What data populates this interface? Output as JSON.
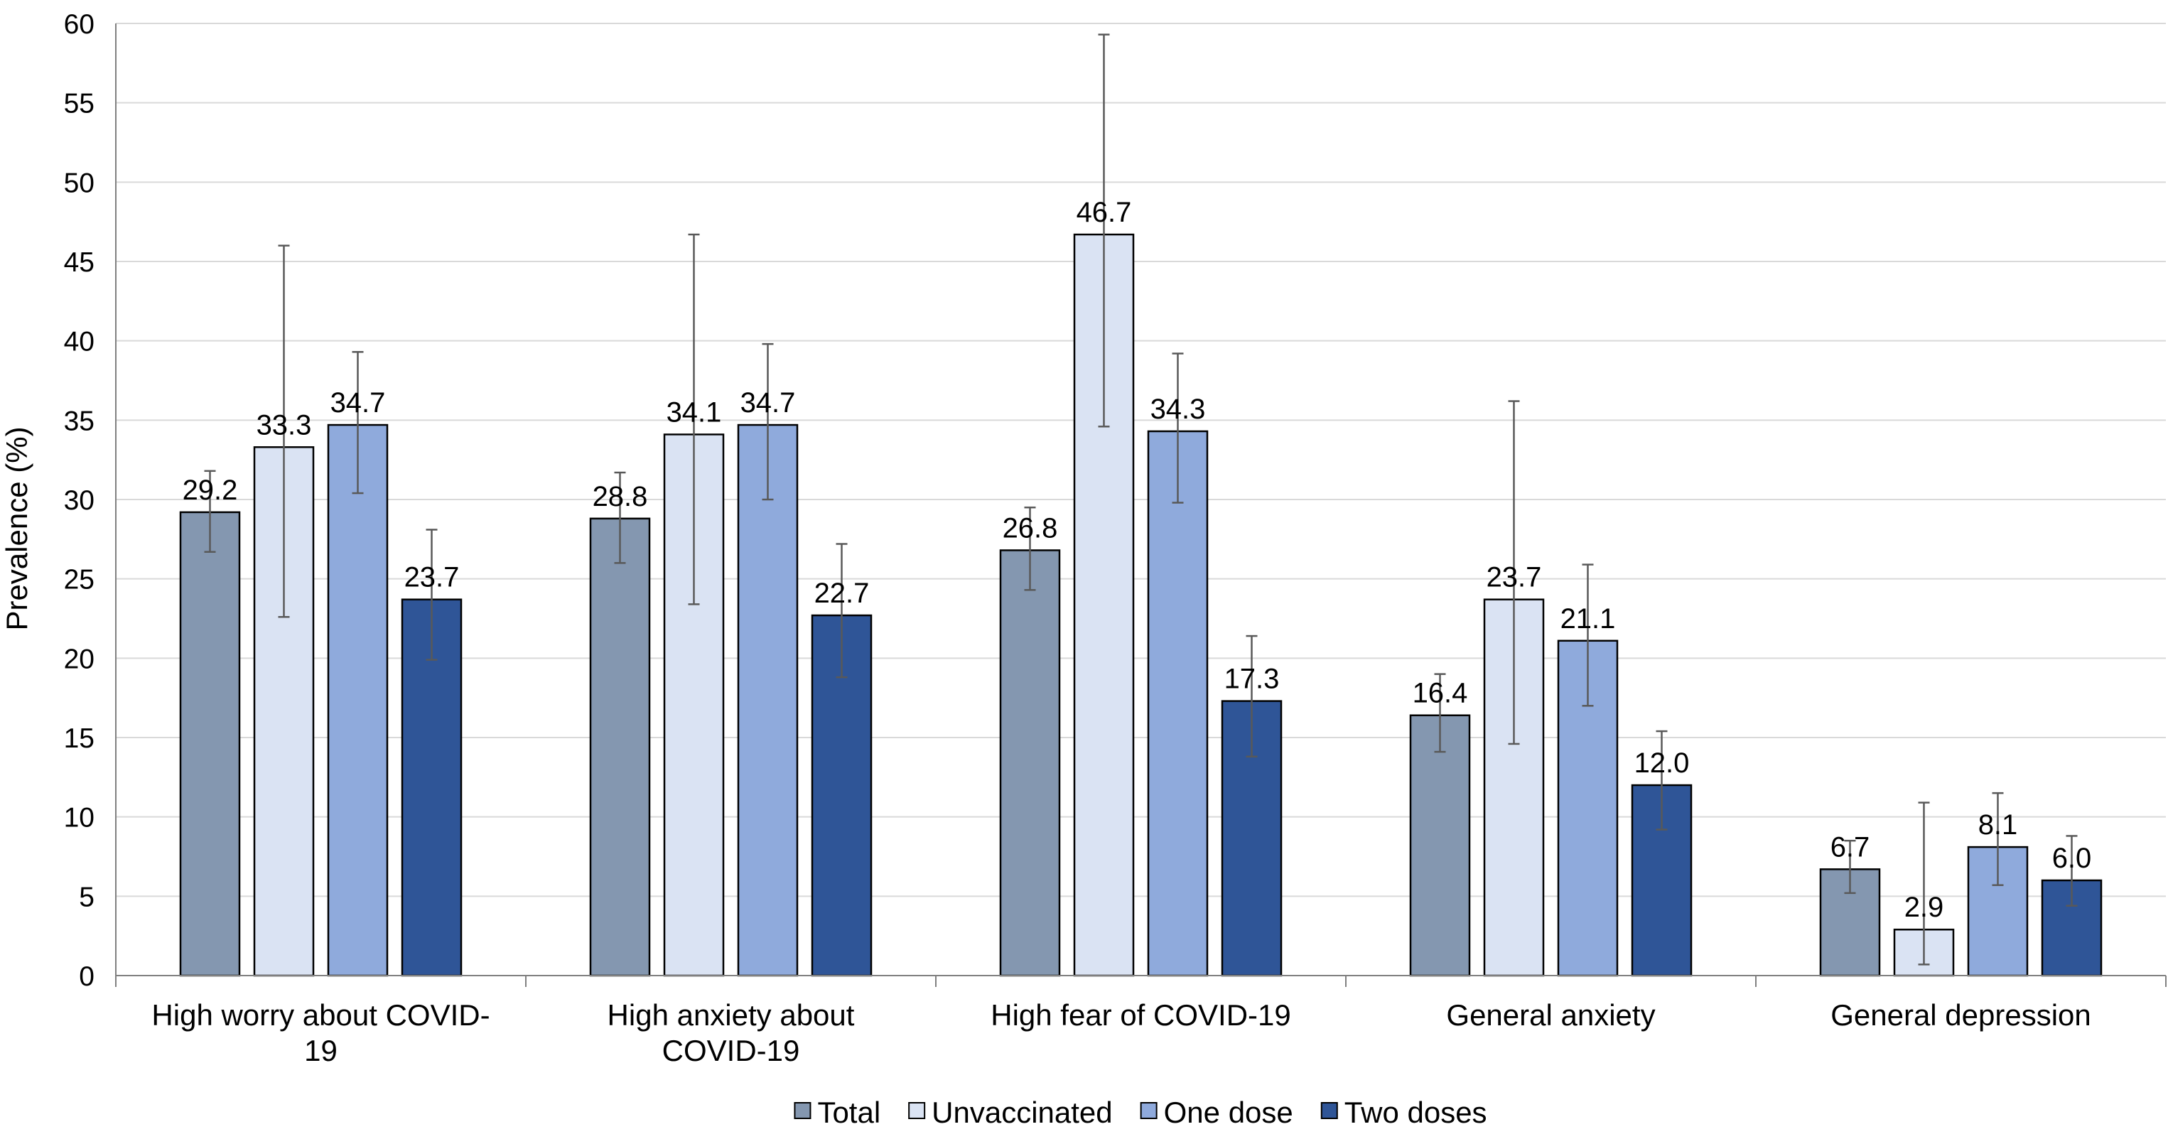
{
  "chart_data": {
    "type": "bar",
    "title": "",
    "xlabel": "",
    "ylabel": "Prevalence (%)",
    "ylim": [
      0,
      60
    ],
    "ytick_step": 5,
    "grid": true,
    "legend_position": "bottom",
    "categories": [
      [
        "High worry about COVID-",
        "19"
      ],
      [
        "High anxiety about",
        "COVID-19"
      ],
      [
        "High fear of COVID-19"
      ],
      [
        "General anxiety"
      ],
      [
        "General depression"
      ]
    ],
    "series": [
      {
        "name": "Total",
        "color": "#8497B0",
        "values": [
          29.2,
          28.8,
          26.8,
          16.4,
          6.7
        ],
        "labels": [
          "29.2",
          "28.8",
          "26.8",
          "16.4",
          "6.7"
        ],
        "ci_low": [
          26.7,
          26.0,
          24.3,
          14.1,
          5.2
        ],
        "ci_high": [
          31.8,
          31.7,
          29.5,
          19.0,
          8.5
        ]
      },
      {
        "name": "Unvaccinated",
        "color": "#DAE3F3",
        "values": [
          33.3,
          34.1,
          46.7,
          23.7,
          2.9
        ],
        "labels": [
          "33.3",
          "34.1",
          "46.7",
          "23.7",
          "2.9"
        ],
        "ci_low": [
          22.6,
          23.4,
          34.6,
          14.6,
          0.7
        ],
        "ci_high": [
          46.0,
          46.7,
          59.3,
          36.2,
          10.9
        ]
      },
      {
        "name": "One dose",
        "color": "#8FAADC",
        "values": [
          34.7,
          34.7,
          34.3,
          21.1,
          8.1
        ],
        "labels": [
          "34.7",
          "34.7",
          "34.3",
          "21.1",
          "8.1"
        ],
        "ci_low": [
          30.4,
          30.0,
          29.8,
          17.0,
          5.7
        ],
        "ci_high": [
          39.3,
          39.8,
          39.2,
          25.9,
          11.5
        ]
      },
      {
        "name": "Two doses",
        "color": "#2F5597",
        "values": [
          23.7,
          22.7,
          17.3,
          12.0,
          6.0
        ],
        "labels": [
          "23.7",
          "22.7",
          "17.3",
          "12.0",
          "6.0"
        ],
        "ci_low": [
          19.9,
          18.8,
          13.8,
          9.2,
          4.4
        ],
        "ci_high": [
          28.1,
          27.2,
          21.4,
          15.4,
          8.8
        ]
      }
    ]
  }
}
